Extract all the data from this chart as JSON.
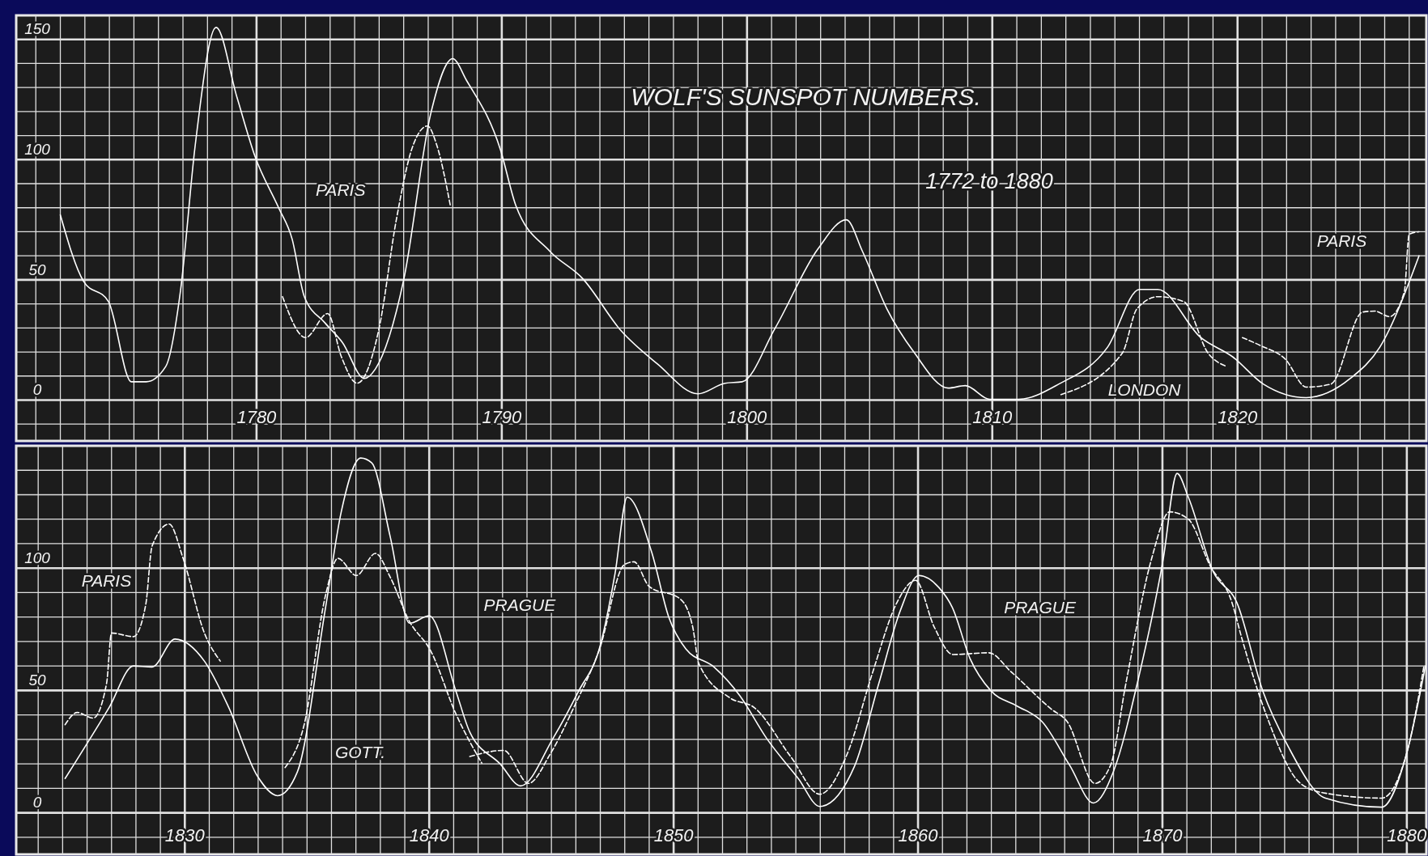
{
  "chart_data": [
    {
      "type": "line",
      "title": "WOLF'S SUNSPOT NUMBERS.",
      "subtitle": "1772 to 1880",
      "grid": true,
      "xlim": [
        1770.2,
        1827.7
      ],
      "ylim": [
        -17,
        160
      ],
      "xticks": [
        {
          "value": 1771,
          "label": null
        },
        {
          "value": 1772,
          "label": null
        },
        {
          "value": 1773,
          "label": null
        },
        {
          "value": 1774,
          "label": null
        },
        {
          "value": 1775,
          "label": null
        },
        {
          "value": 1776,
          "label": null
        },
        {
          "value": 1777,
          "label": null
        },
        {
          "value": 1778,
          "label": null
        },
        {
          "value": 1779,
          "label": null
        },
        1780,
        {
          "value": 1781,
          "label": null
        },
        {
          "value": 1782,
          "label": null
        },
        {
          "value": 1783,
          "label": null
        },
        {
          "value": 1784,
          "label": null
        },
        {
          "value": 1785,
          "label": null
        },
        {
          "value": 1786,
          "label": null
        },
        {
          "value": 1787,
          "label": null
        },
        {
          "value": 1788,
          "label": null
        },
        {
          "value": 1789,
          "label": null
        },
        1790,
        {
          "value": 1791,
          "label": null
        },
        {
          "value": 1792,
          "label": null
        },
        {
          "value": 1793,
          "label": null
        },
        {
          "value": 1794,
          "label": null
        },
        {
          "value": 1795,
          "label": null
        },
        {
          "value": 1796,
          "label": null
        },
        {
          "value": 1797,
          "label": null
        },
        {
          "value": 1798,
          "label": null
        },
        {
          "value": 1799,
          "label": null
        },
        1800,
        {
          "value": 1801,
          "label": null
        },
        {
          "value": 1802,
          "label": null
        },
        {
          "value": 1803,
          "label": null
        },
        {
          "value": 1804,
          "label": null
        },
        {
          "value": 1805,
          "label": null
        },
        {
          "value": 1806,
          "label": null
        },
        {
          "value": 1807,
          "label": null
        },
        {
          "value": 1808,
          "label": null
        },
        {
          "value": 1809,
          "label": null
        },
        1810,
        {
          "value": 1811,
          "label": null
        },
        {
          "value": 1812,
          "label": null
        },
        {
          "value": 1813,
          "label": null
        },
        {
          "value": 1814,
          "label": null
        },
        {
          "value": 1815,
          "label": null
        },
        {
          "value": 1816,
          "label": null
        },
        {
          "value": 1817,
          "label": null
        },
        {
          "value": 1818,
          "label": null
        },
        {
          "value": 1819,
          "label": null
        },
        1820,
        {
          "value": 1821,
          "label": null
        },
        {
          "value": 1822,
          "label": null
        },
        {
          "value": 1823,
          "label": null
        },
        {
          "value": 1824,
          "label": null
        },
        {
          "value": 1825,
          "label": null
        },
        {
          "value": 1826,
          "label": null
        },
        {
          "value": 1827,
          "label": null
        }
      ],
      "yticks": [
        {
          "value": -10,
          "label": null
        },
        0,
        {
          "value": 10,
          "label": null
        },
        {
          "value": 20,
          "label": null
        },
        {
          "value": 30,
          "label": null
        },
        {
          "value": 40,
          "label": null
        },
        50,
        {
          "value": 60,
          "label": null
        },
        {
          "value": 70,
          "label": null
        },
        {
          "value": 80,
          "label": null
        },
        {
          "value": 90,
          "label": null
        },
        100,
        {
          "value": 110,
          "label": null
        },
        {
          "value": 120,
          "label": null
        },
        {
          "value": 130,
          "label": null
        },
        {
          "value": 140,
          "label": null
        },
        150
      ],
      "series": [
        {
          "color": "#ffffff",
          "line_style": "solid",
          "x": [
            1772,
            1772.94,
            1773.96,
            1774.9,
            1775.5,
            1776.3,
            1776.9,
            1777.5,
            1778.35,
            1779.2,
            1779.95,
            1780.9,
            1781.45,
            1781.95,
            1782.8,
            1783.5,
            1784.4,
            1784.85,
            1786,
            1787.1,
            1788,
            1788.56,
            1789.95,
            1790.57,
            1791.95,
            1793.3,
            1794.85,
            1796.35,
            1798,
            1799.1,
            1799.8,
            1801.15,
            1802.9,
            1804.05,
            1804.7,
            1805.7,
            1806.8,
            1808.2,
            1808.9,
            1809.9,
            1811.06,
            1812.7,
            1814.7,
            1816,
            1816.75,
            1818.5,
            1819.8,
            1821.06,
            1822.8,
            1824.6,
            1825.8,
            1827.4
          ],
          "values": [
            77,
            49.5,
            41,
            7.6,
            7.6,
            14,
            45.5,
            106,
            155,
            126,
            101,
            80,
            67,
            43,
            32,
            24,
            9,
            13,
            50,
            119,
            142,
            133,
            104,
            81,
            62,
            50.5,
            29,
            15,
            2.6,
            7,
            7.6,
            30,
            63,
            75,
            62,
            38,
            20,
            5,
            6,
            0.3,
            0.3,
            6.6,
            22,
            46,
            46,
            26,
            18,
            6.6,
            1,
            9,
            22,
            60
          ]
        },
        {
          "color": "#ffffff",
          "line_style": "dashed",
          "x": [
            1781.06,
            1782,
            1782.9,
            1783.46,
            1784.1,
            1785,
            1785.7,
            1786.35,
            1786.97,
            1787.35,
            1787.9
          ],
          "values": [
            43,
            26,
            36,
            18,
            7,
            30,
            75,
            105,
            114,
            106,
            81
          ]
        },
        {
          "color": "#ffffff",
          "line_style": "dashed",
          "x": [
            1812.8,
            1815.3,
            1815.9,
            1816.76,
            1817.8,
            1818.8,
            1819.55
          ],
          "values": [
            2.3,
            19.5,
            38,
            43,
            41,
            19.5,
            14
          ]
        },
        {
          "color": "#ffffff",
          "line_style": "dashed",
          "x": [
            1820.2,
            1820.95,
            1821.95,
            1822.8,
            1823.8,
            1825.1,
            1825.6,
            1826.2,
            1826.8,
            1827,
            1827.4
          ],
          "values": [
            26,
            22.6,
            17,
            5.4,
            6.6,
            36.6,
            37,
            34.7,
            45,
            69,
            70
          ]
        }
      ],
      "annotations": [
        "PARIS",
        "LONDON",
        "PARIS"
      ]
    },
    {
      "type": "line",
      "grid": true,
      "xlim": [
        1823.1,
        1880.8
      ],
      "ylim": [
        -17,
        150
      ],
      "xticks": [
        {
          "value": 1824,
          "label": null
        },
        {
          "value": 1825,
          "label": null
        },
        {
          "value": 1826,
          "label": null
        },
        {
          "value": 1827,
          "label": null
        },
        {
          "value": 1828,
          "label": null
        },
        {
          "value": 1829,
          "label": null
        },
        1830,
        {
          "value": 1831,
          "label": null
        },
        {
          "value": 1832,
          "label": null
        },
        {
          "value": 1833,
          "label": null
        },
        {
          "value": 1834,
          "label": null
        },
        {
          "value": 1835,
          "label": null
        },
        {
          "value": 1836,
          "label": null
        },
        {
          "value": 1837,
          "label": null
        },
        {
          "value": 1838,
          "label": null
        },
        {
          "value": 1839,
          "label": null
        },
        1840,
        {
          "value": 1841,
          "label": null
        },
        {
          "value": 1842,
          "label": null
        },
        {
          "value": 1843,
          "label": null
        },
        {
          "value": 1844,
          "label": null
        },
        {
          "value": 1845,
          "label": null
        },
        {
          "value": 1846,
          "label": null
        },
        {
          "value": 1847,
          "label": null
        },
        {
          "value": 1848,
          "label": null
        },
        {
          "value": 1849,
          "label": null
        },
        1850,
        {
          "value": 1851,
          "label": null
        },
        {
          "value": 1852,
          "label": null
        },
        {
          "value": 1853,
          "label": null
        },
        {
          "value": 1854,
          "label": null
        },
        {
          "value": 1855,
          "label": null
        },
        {
          "value": 1856,
          "label": null
        },
        {
          "value": 1857,
          "label": null
        },
        {
          "value": 1858,
          "label": null
        },
        {
          "value": 1859,
          "label": null
        },
        1860,
        {
          "value": 1861,
          "label": null
        },
        {
          "value": 1862,
          "label": null
        },
        {
          "value": 1863,
          "label": null
        },
        {
          "value": 1864,
          "label": null
        },
        {
          "value": 1865,
          "label": null
        },
        {
          "value": 1866,
          "label": null
        },
        {
          "value": 1867,
          "label": null
        },
        {
          "value": 1868,
          "label": null
        },
        {
          "value": 1869,
          "label": null
        },
        1870,
        {
          "value": 1871,
          "label": null
        },
        {
          "value": 1872,
          "label": null
        },
        {
          "value": 1873,
          "label": null
        },
        {
          "value": 1874,
          "label": null
        },
        {
          "value": 1875,
          "label": null
        },
        {
          "value": 1876,
          "label": null
        },
        {
          "value": 1877,
          "label": null
        },
        {
          "value": 1878,
          "label": null
        },
        {
          "value": 1879,
          "label": null
        },
        1880
      ],
      "yticks": [
        {
          "value": -10,
          "label": null
        },
        0,
        {
          "value": 10,
          "label": null
        },
        {
          "value": 20,
          "label": null
        },
        {
          "value": 30,
          "label": null
        },
        {
          "value": 40,
          "label": null
        },
        50,
        {
          "value": 60,
          "label": null
        },
        {
          "value": 70,
          "label": null
        },
        {
          "value": 80,
          "label": null
        },
        {
          "value": 90,
          "label": null
        },
        100,
        {
          "value": 110,
          "label": null
        },
        {
          "value": 120,
          "label": null
        },
        {
          "value": 130,
          "label": null
        },
        {
          "value": 140,
          "label": null
        }
      ],
      "series": [
        {
          "color": "#ffffff",
          "line_style": "solid",
          "x": [
            1825.1,
            1826.9,
            1827.9,
            1828.66,
            1829.6,
            1830.8,
            1831.8,
            1832.97,
            1833.8,
            1834.6,
            1835.76,
            1836.4,
            1837.2,
            1837.65,
            1838.4,
            1839.2,
            1840,
            1841.1,
            1841.66,
            1842.9,
            1843.74,
            1845.07,
            1846.1,
            1847,
            1847.6,
            1848.1,
            1849.1,
            1849.8,
            1850.5,
            1851.65,
            1852.7,
            1853.8,
            1855.1,
            1855.98,
            1857.4,
            1858.4,
            1859.27,
            1860.03,
            1860.86,
            1861.4,
            1862.13,
            1862.97,
            1864.04,
            1865.07,
            1866.2,
            1867.18,
            1868,
            1869.02,
            1870.03,
            1870.6,
            1871.06,
            1872.08,
            1873.05,
            1874.1,
            1875.15,
            1876.67,
            1878.97,
            1880,
            1880.76
          ],
          "values": [
            14,
            43,
            60,
            59.6,
            71,
            62,
            43,
            15,
            7,
            16.6,
            84,
            123,
            145,
            143,
            113,
            77.5,
            80.5,
            49.5,
            33,
            20,
            11,
            30.5,
            49.5,
            68.5,
            97.6,
            129,
            106.6,
            80,
            67,
            59.6,
            48,
            30.5,
            14,
            2.6,
            19,
            53,
            82.5,
            97,
            92,
            84,
            63,
            50,
            43.7,
            37.3,
            19.5,
            4,
            17,
            55,
            103.6,
            138.7,
            129,
            98.5,
            85.8,
            50,
            27,
            6,
            2.3,
            24.5,
            60
          ]
        },
        {
          "color": "#ffffff",
          "line_style": "dashed",
          "x": [
            1825.1,
            1825.6,
            1826.25,
            1826.8,
            1827,
            1827.9,
            1828.4,
            1828.66,
            1829.36,
            1829.93,
            1830.8,
            1831.45
          ],
          "values": [
            36,
            41,
            38.7,
            53,
            73.5,
            72,
            85,
            109,
            118,
            104,
            73.5,
            62
          ]
        },
        {
          "color": "#ffffff",
          "line_style": "dashed",
          "x": [
            1834.1,
            1834.87,
            1835.76,
            1836.26,
            1837.02,
            1837.8,
            1838.4,
            1839.17,
            1840.07,
            1841.08,
            1842.15
          ],
          "values": [
            18.5,
            35.5,
            89,
            104,
            97,
            106,
            96.4,
            78.6,
            66,
            40.7,
            20.3
          ]
        },
        {
          "color": "#ffffff",
          "line_style": "dashed",
          "x": [
            1841.66,
            1843.05,
            1844.06,
            1844.95,
            1845.96,
            1846.97,
            1847.98,
            1848.38,
            1849,
            1850.27,
            1850.78,
            1851.03,
            1852.3,
            1853.3,
            1854.8,
            1855.98,
            1857.1,
            1858.13,
            1859.14,
            1859.9,
            1860.66,
            1861.43,
            1862.9,
            1863.8,
            1865.45,
            1866.1,
            1867.24,
            1867.88,
            1868.5,
            1869.55,
            1870.3,
            1871.06,
            1871.95,
            1872.85,
            1873.23,
            1874.25,
            1875.65,
            1876.67,
            1878.97,
            1880,
            1880.7
          ],
          "values": [
            23,
            25.5,
            12,
            24,
            44,
            67,
            101.4,
            102.6,
            92.5,
            87.4,
            76,
            61,
            47,
            43,
            22.8,
            7.6,
            24,
            57,
            86,
            95,
            76,
            64.7,
            65.4,
            57.7,
            42.4,
            37.3,
            12,
            19.5,
            52.6,
            103.6,
            123,
            120,
            101,
            85.8,
            72,
            40,
            12,
            8,
            6,
            24.5,
            60
          ]
        }
      ],
      "annotations": [
        "PARIS",
        "GOTT.",
        "PRAGUE",
        "PRAGUE"
      ]
    }
  ]
}
